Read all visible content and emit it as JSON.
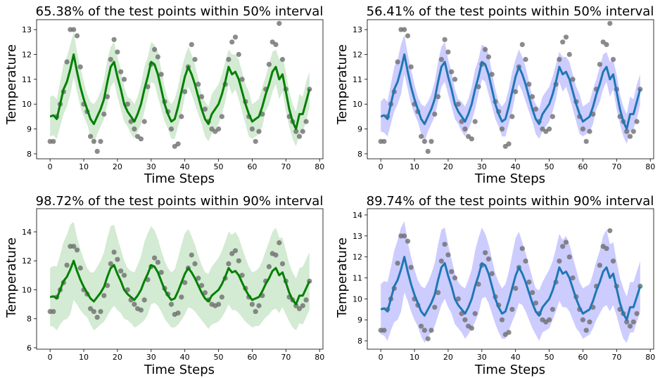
{
  "colors": {
    "green_line": "#008000",
    "green_band": "#d3ead3",
    "blue_line": "#1f77b4",
    "blue_band": "#ccccff",
    "points": "#6e6e6e"
  },
  "chart_data": [
    {
      "type": "line",
      "title": "65.38% of the test points within 50% interval",
      "xlabel": "Time Steps",
      "ylabel": "Temperature",
      "xlim": [
        -4,
        81
      ],
      "ylim": [
        7.8,
        13.4
      ],
      "xticks": [
        0,
        10,
        20,
        30,
        40,
        50,
        60,
        70,
        80
      ],
      "yticks": [
        8,
        9,
        10,
        11,
        12,
        13
      ],
      "style": "green",
      "band_halfwidth": [
        0.8,
        0.8,
        0.8,
        0.9,
        1.0,
        1.0,
        1.0,
        0.9,
        0.8,
        0.8,
        0.7,
        0.6,
        0.7,
        0.8,
        0.7,
        0.7,
        0.8,
        0.9,
        0.8,
        0.8,
        0.8,
        0.8,
        0.7,
        0.6,
        0.7,
        0.7,
        0.7,
        0.8,
        0.9,
        0.8,
        0.8,
        0.8,
        0.9,
        0.8,
        0.7,
        0.6,
        0.7,
        0.8,
        0.8,
        0.9,
        0.8,
        0.8,
        0.8,
        0.8,
        0.7,
        0.6,
        0.7,
        0.7,
        0.8,
        0.8,
        0.8,
        0.8,
        0.8,
        0.7,
        0.8,
        0.7,
        0.8,
        0.8,
        0.8,
        0.9,
        0.7,
        0.7,
        0.7,
        0.8,
        0.7,
        0.8,
        0.8,
        0.7,
        0.8,
        0.7,
        0.8,
        0.7,
        0.7,
        0.7,
        0.8,
        0.7,
        0.8,
        0.7
      ]
    },
    {
      "type": "line",
      "title": "56.41% of the test points within 50% interval",
      "xlabel": "Time Steps",
      "ylabel": "Temperature",
      "xlim": [
        -4,
        81
      ],
      "ylim": [
        7.8,
        13.4
      ],
      "xticks": [
        0,
        10,
        20,
        30,
        40,
        50,
        60,
        70,
        80
      ],
      "yticks": [
        8,
        9,
        10,
        11,
        12,
        13
      ],
      "style": "blue",
      "band_halfwidth": [
        0.6,
        0.7,
        0.7,
        0.8,
        0.9,
        0.9,
        1.0,
        0.8,
        0.7,
        0.7,
        0.6,
        0.5,
        0.6,
        0.7,
        0.6,
        0.6,
        0.7,
        0.8,
        0.8,
        0.8,
        0.7,
        0.7,
        0.6,
        0.5,
        0.6,
        0.6,
        0.6,
        0.7,
        0.8,
        0.7,
        0.7,
        0.7,
        0.8,
        0.7,
        0.6,
        0.5,
        0.6,
        0.7,
        0.7,
        0.8,
        0.7,
        0.7,
        0.7,
        0.7,
        0.6,
        0.5,
        0.6,
        0.6,
        0.7,
        0.7,
        0.7,
        0.7,
        0.7,
        0.6,
        0.7,
        0.6,
        0.7,
        0.7,
        0.7,
        0.8,
        0.6,
        0.6,
        0.6,
        0.7,
        0.6,
        0.7,
        0.7,
        0.6,
        0.7,
        0.6,
        0.7,
        0.6,
        0.6,
        0.6,
        0.7,
        0.6,
        0.7,
        0.6
      ]
    },
    {
      "type": "line",
      "title": "98.72% of the test points within 90% interval",
      "xlabel": "Time Steps",
      "ylabel": "Temperature",
      "xlim": [
        -4,
        81
      ],
      "ylim": [
        5.9,
        15.6
      ],
      "xticks": [
        0,
        10,
        20,
        30,
        40,
        50,
        60,
        70,
        80
      ],
      "yticks": [
        6,
        8,
        10,
        12,
        14
      ],
      "style": "green",
      "band_halfwidth": [
        2.0,
        2.1,
        2.2,
        2.4,
        2.7,
        2.9,
        3.1,
        2.7,
        2.3,
        2.1,
        1.9,
        1.7,
        1.8,
        2.0,
        2.1,
        2.2,
        2.4,
        2.7,
        2.9,
        2.8,
        2.5,
        2.2,
        2.0,
        1.8,
        1.8,
        1.9,
        2.1,
        2.3,
        2.7,
        2.8,
        2.7,
        2.5,
        2.3,
        2.1,
        2.0,
        1.9,
        1.9,
        2.0,
        2.3,
        2.6,
        2.8,
        2.7,
        2.5,
        2.3,
        2.1,
        1.9,
        1.8,
        1.9,
        2.0,
        2.1,
        2.2,
        2.3,
        2.4,
        2.5,
        2.6,
        2.7,
        2.6,
        2.4,
        2.2,
        2.0,
        1.9,
        1.9,
        2.0,
        2.1,
        2.3,
        2.5,
        2.7,
        2.8,
        2.6,
        2.4,
        2.2,
        2.0,
        1.9,
        1.8,
        1.9,
        2.0,
        2.0,
        2.0
      ]
    },
    {
      "type": "line",
      "title": "89.74% of the test points within 90% interval",
      "xlabel": "Time Steps",
      "ylabel": "Temperature",
      "xlim": [
        -4,
        81
      ],
      "ylim": [
        7.6,
        14.3
      ],
      "xticks": [
        0,
        10,
        20,
        30,
        40,
        50,
        60,
        70,
        80
      ],
      "yticks": [
        8,
        9,
        10,
        11,
        12,
        13,
        14
      ],
      "style": "blue",
      "band_halfwidth": [
        1.2,
        1.3,
        1.4,
        1.5,
        1.7,
        1.9,
        2.0,
        1.7,
        1.4,
        1.3,
        1.2,
        1.1,
        1.2,
        1.3,
        1.3,
        1.4,
        1.5,
        1.7,
        1.8,
        1.7,
        1.5,
        1.3,
        1.2,
        1.1,
        1.1,
        1.2,
        1.3,
        1.4,
        1.7,
        1.8,
        1.7,
        1.5,
        1.4,
        1.3,
        1.2,
        1.2,
        1.2,
        1.3,
        1.4,
        1.6,
        1.8,
        1.7,
        1.5,
        1.4,
        1.3,
        1.2,
        1.1,
        1.2,
        1.2,
        1.3,
        1.4,
        1.4,
        1.5,
        1.6,
        1.6,
        1.7,
        1.6,
        1.5,
        1.4,
        1.2,
        1.2,
        1.2,
        1.2,
        1.3,
        1.4,
        1.5,
        1.7,
        1.8,
        1.6,
        1.5,
        1.3,
        1.2,
        1.2,
        1.1,
        1.2,
        1.2,
        1.2,
        1.2
      ]
    }
  ],
  "series_shared": {
    "x": [
      0,
      1,
      2,
      3,
      4,
      5,
      6,
      7,
      8,
      9,
      10,
      11,
      12,
      13,
      14,
      15,
      16,
      17,
      18,
      19,
      20,
      21,
      22,
      23,
      24,
      25,
      26,
      27,
      28,
      29,
      30,
      31,
      32,
      33,
      34,
      35,
      36,
      37,
      38,
      39,
      40,
      41,
      42,
      43,
      44,
      45,
      46,
      47,
      48,
      49,
      50,
      51,
      52,
      53,
      54,
      55,
      56,
      57,
      58,
      59,
      60,
      61,
      62,
      63,
      64,
      65,
      66,
      67,
      68,
      69,
      70,
      71,
      72,
      73,
      74,
      75,
      76,
      77
    ],
    "mean": [
      9.5,
      9.55,
      9.4,
      10.0,
      10.6,
      10.9,
      11.4,
      12.0,
      11.3,
      10.7,
      10.2,
      9.8,
      9.4,
      9.2,
      9.5,
      9.8,
      10.2,
      10.9,
      11.5,
      11.7,
      11.1,
      10.6,
      10.0,
      9.7,
      9.5,
      9.3,
      9.6,
      10.0,
      10.6,
      11.1,
      11.7,
      11.6,
      11.2,
      10.6,
      10.0,
      9.6,
      9.3,
      9.4,
      9.9,
      10.5,
      11.1,
      11.5,
      11.2,
      10.8,
      10.3,
      9.8,
      9.4,
      9.2,
      9.6,
      9.8,
      10.0,
      10.4,
      10.9,
      11.5,
      11.2,
      11.3,
      11.0,
      10.5,
      10.0,
      9.6,
      9.3,
      9.4,
      9.5,
      9.9,
      10.4,
      10.8,
      11.3,
      11.5,
      11.0,
      11.2,
      10.5,
      9.8,
      9.3,
      9.0,
      9.6,
      9.6,
      10.1,
      10.6
    ],
    "points": [
      [
        0,
        8.5
      ],
      [
        1,
        8.5
      ],
      [
        2,
        9.5
      ],
      [
        3,
        10.0
      ],
      [
        4,
        10.5
      ],
      [
        5,
        11.7
      ],
      [
        6,
        13.0
      ],
      [
        7,
        13.0
      ],
      [
        8,
        12.75
      ],
      [
        9,
        11.5
      ],
      [
        10,
        10.0
      ],
      [
        11,
        9.7
      ],
      [
        12,
        8.7
      ],
      [
        13,
        8.5
      ],
      [
        14,
        8.1
      ],
      [
        15,
        8.5
      ],
      [
        16,
        9.6
      ],
      [
        17,
        10.3
      ],
      [
        18,
        11.8
      ],
      [
        19,
        12.6
      ],
      [
        20,
        12.1
      ],
      [
        21,
        11.3
      ],
      [
        22,
        11.0
      ],
      [
        23,
        10.0
      ],
      [
        24,
        9.3
      ],
      [
        25,
        9.0
      ],
      [
        26,
        8.7
      ],
      [
        27,
        8.6
      ],
      [
        28,
        9.3
      ],
      [
        29,
        10.7
      ],
      [
        30,
        11.6
      ],
      [
        31,
        12.2
      ],
      [
        32,
        11.9
      ],
      [
        33,
        11.2
      ],
      [
        34,
        10.1
      ],
      [
        35,
        9.7
      ],
      [
        36,
        9.0
      ],
      [
        37,
        8.3
      ],
      [
        38,
        8.4
      ],
      [
        39,
        9.5
      ],
      [
        40,
        10.5
      ],
      [
        41,
        11.5
      ],
      [
        42,
        12.4
      ],
      [
        43,
        11.8
      ],
      [
        44,
        10.8
      ],
      [
        45,
        10.3
      ],
      [
        46,
        9.8
      ],
      [
        47,
        9.3
      ],
      [
        48,
        9.0
      ],
      [
        49,
        8.9
      ],
      [
        50,
        9.0
      ],
      [
        51,
        9.5
      ],
      [
        52,
        10.8
      ],
      [
        53,
        11.8
      ],
      [
        54,
        12.5
      ],
      [
        55,
        12.7
      ],
      [
        56,
        12.0
      ],
      [
        57,
        11.0
      ],
      [
        58,
        10.1
      ],
      [
        59,
        9.5
      ],
      [
        60,
        9.0
      ],
      [
        61,
        8.5
      ],
      [
        62,
        8.9
      ],
      [
        63,
        9.6
      ],
      [
        64,
        10.6
      ],
      [
        65,
        11.6
      ],
      [
        66,
        12.5
      ],
      [
        67,
        12.4
      ],
      [
        68,
        13.25
      ],
      [
        69,
        11.8
      ],
      [
        70,
        10.6
      ],
      [
        71,
        9.5
      ],
      [
        72,
        9.3
      ],
      [
        73,
        8.9
      ],
      [
        74,
        8.7
      ],
      [
        75,
        8.9
      ],
      [
        76,
        9.3
      ],
      [
        77,
        10.6
      ]
    ]
  }
}
